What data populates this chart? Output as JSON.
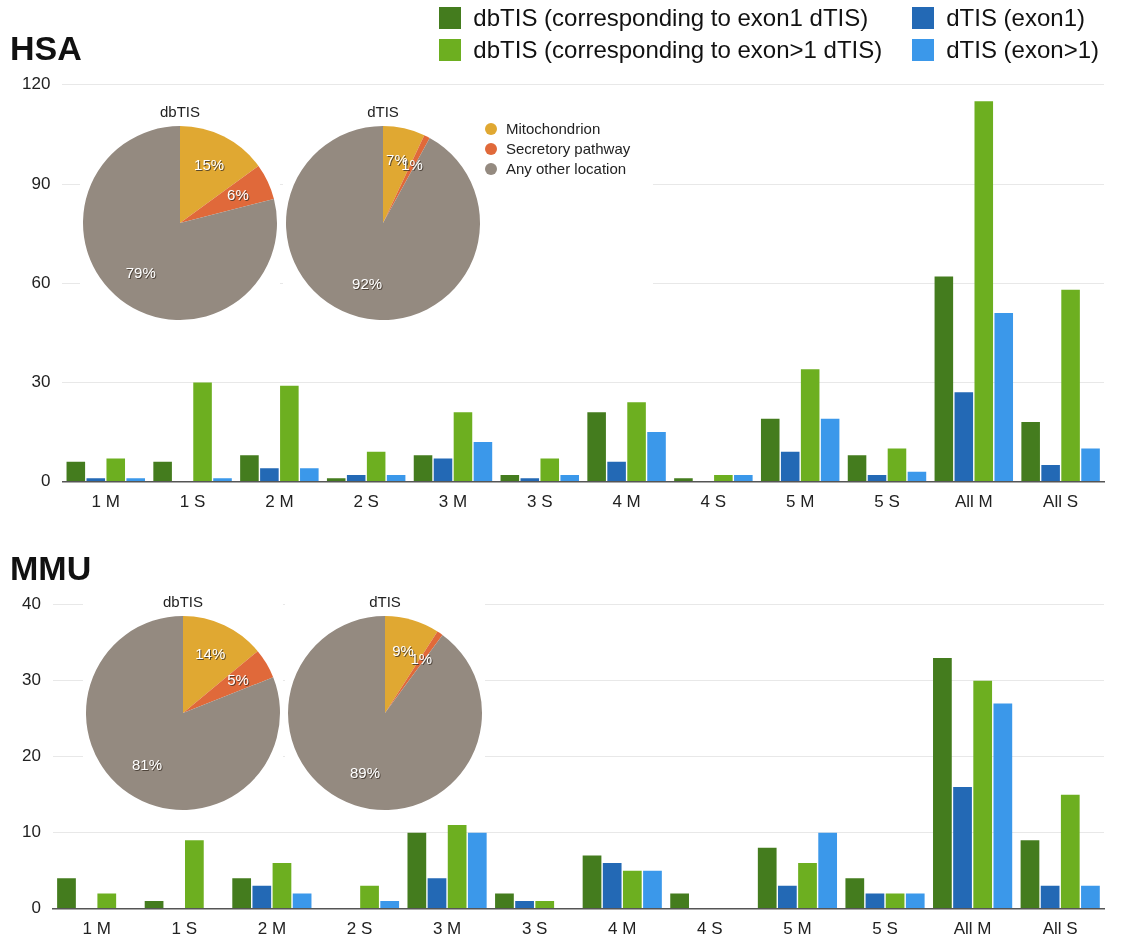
{
  "chart_data": [
    {
      "type": "bar",
      "title": "HSA",
      "categories": [
        "1 M",
        "1 S",
        "2 M",
        "2 S",
        "3 M",
        "3 S",
        "4 M",
        "4 S",
        "5 M",
        "5 S",
        "All M",
        "All S"
      ],
      "series": [
        {
          "name": "dbTIS (corresponding to exon1 dTIS)",
          "color": "#447c1e",
          "values": [
            6,
            6,
            8,
            1,
            8,
            2,
            21,
            1,
            19,
            8,
            62,
            18
          ]
        },
        {
          "name": "dTIS (exon1)",
          "color": "#2369b5",
          "values": [
            1,
            0,
            4,
            2,
            7,
            1,
            6,
            0,
            9,
            2,
            27,
            5
          ]
        },
        {
          "name": "dbTIS (corresponding to exon>1 dTIS)",
          "color": "#6daf20",
          "values": [
            7,
            30,
            29,
            9,
            21,
            7,
            24,
            2,
            34,
            10,
            115,
            58
          ]
        },
        {
          "name": "dTIS (exon>1)",
          "color": "#3b98ea",
          "values": [
            1,
            1,
            4,
            2,
            12,
            2,
            15,
            2,
            19,
            3,
            51,
            10
          ]
        }
      ],
      "ylim": [
        0,
        120
      ],
      "yticks": [
        0,
        30,
        60,
        90,
        120
      ],
      "grid": "y",
      "legend": "top right"
    },
    {
      "type": "pie",
      "title": "dbTIS",
      "categories": [
        null,
        null,
        null
      ],
      "values": [
        15,
        6,
        79
      ],
      "colors": [
        "#e0a832",
        "#e0693a",
        "#948a80"
      ],
      "value_labels": [
        "15%",
        "6%",
        "79%"
      ]
    },
    {
      "type": "pie",
      "title": "dTIS",
      "categories": [
        "Mitochondrion",
        "Secretory pathway",
        "Any other location"
      ],
      "values": [
        7,
        1,
        92
      ],
      "colors": [
        "#e0a832",
        "#e0693a",
        "#948a80"
      ],
      "value_labels": [
        "7%",
        "1%",
        "92%"
      ],
      "legend": "right"
    },
    {
      "type": "bar",
      "title": "MMU",
      "categories": [
        "1 M",
        "1 S",
        "2 M",
        "2 S",
        "3 M",
        "3 S",
        "4 M",
        "4 S",
        "5 M",
        "5 S",
        "All M",
        "All S"
      ],
      "series": [
        {
          "color": "#447c1e",
          "values": [
            4,
            1,
            4,
            0,
            10,
            2,
            7,
            2,
            8,
            4,
            33,
            9
          ]
        },
        {
          "color": "#2369b5",
          "values": [
            0,
            0,
            3,
            0,
            4,
            1,
            6,
            0,
            3,
            2,
            16,
            3
          ]
        },
        {
          "color": "#6daf20",
          "values": [
            2,
            9,
            6,
            3,
            11,
            1,
            5,
            0,
            6,
            2,
            30,
            15
          ]
        },
        {
          "color": "#3b98ea",
          "values": [
            0,
            0,
            2,
            1,
            10,
            0,
            5,
            0,
            10,
            2,
            27,
            3
          ]
        }
      ],
      "ylim": [
        0,
        40
      ],
      "yticks": [
        0,
        10,
        20,
        30,
        40
      ],
      "grid": "y"
    },
    {
      "type": "pie",
      "title": "dbTIS",
      "categories": [
        null,
        null,
        null
      ],
      "values": [
        14,
        5,
        81
      ],
      "colors": [
        "#e0a832",
        "#e0693a",
        "#948a80"
      ],
      "value_labels": [
        "14%",
        "5%",
        "81%"
      ]
    },
    {
      "type": "pie",
      "title": "dTIS",
      "categories": [
        null,
        null,
        null
      ],
      "values": [
        9,
        1,
        89
      ],
      "colors": [
        "#e0a832",
        "#e0693a",
        "#948a80"
      ],
      "value_labels": [
        "9%",
        "1%",
        "89%"
      ]
    }
  ]
}
